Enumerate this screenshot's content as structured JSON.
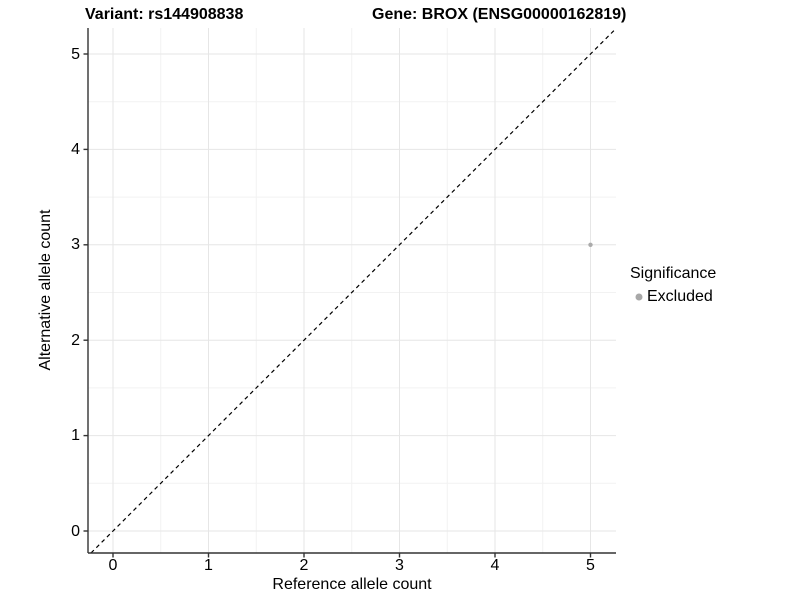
{
  "header": {
    "title_left": "Variant: rs144908838",
    "title_right": "Gene: BROX (ENSG00000162819)"
  },
  "chart_data": {
    "type": "scatter",
    "title": "Variant: rs144908838   Gene: BROX (ENSG00000162819)",
    "xlabel": "Reference allele count",
    "ylabel": "Alternative allele count",
    "xlim": [
      -0.26,
      5.27
    ],
    "ylim": [
      -0.23,
      5.28
    ],
    "x_ticks": [
      0,
      1,
      2,
      3,
      4,
      5
    ],
    "y_ticks": [
      0,
      1,
      2,
      3,
      4,
      5
    ],
    "x_minor_ticks": [
      0.5,
      1.5,
      2.5,
      3.5,
      4.5
    ],
    "y_minor_ticks": [
      0.5,
      1.5,
      2.5,
      3.5,
      4.5
    ],
    "grid": "major-and-minor",
    "series": [
      {
        "name": "Excluded",
        "color": "#ababab",
        "points": [
          {
            "x": 5,
            "y": 3
          }
        ]
      }
    ],
    "reference_line": {
      "type": "identity y=x",
      "style": "dashed",
      "color": "#000000"
    },
    "legend": {
      "title": "Significance",
      "position": "right",
      "items": [
        {
          "label": "Excluded",
          "color": "#a8a8a8"
        }
      ]
    }
  },
  "style_colors": {
    "background": "#ffffff",
    "grid_major": "#e6e6e6",
    "grid_minor": "#f2f2f2",
    "axis_line": "#333333",
    "text": "#000000",
    "point": "#ababab"
  }
}
